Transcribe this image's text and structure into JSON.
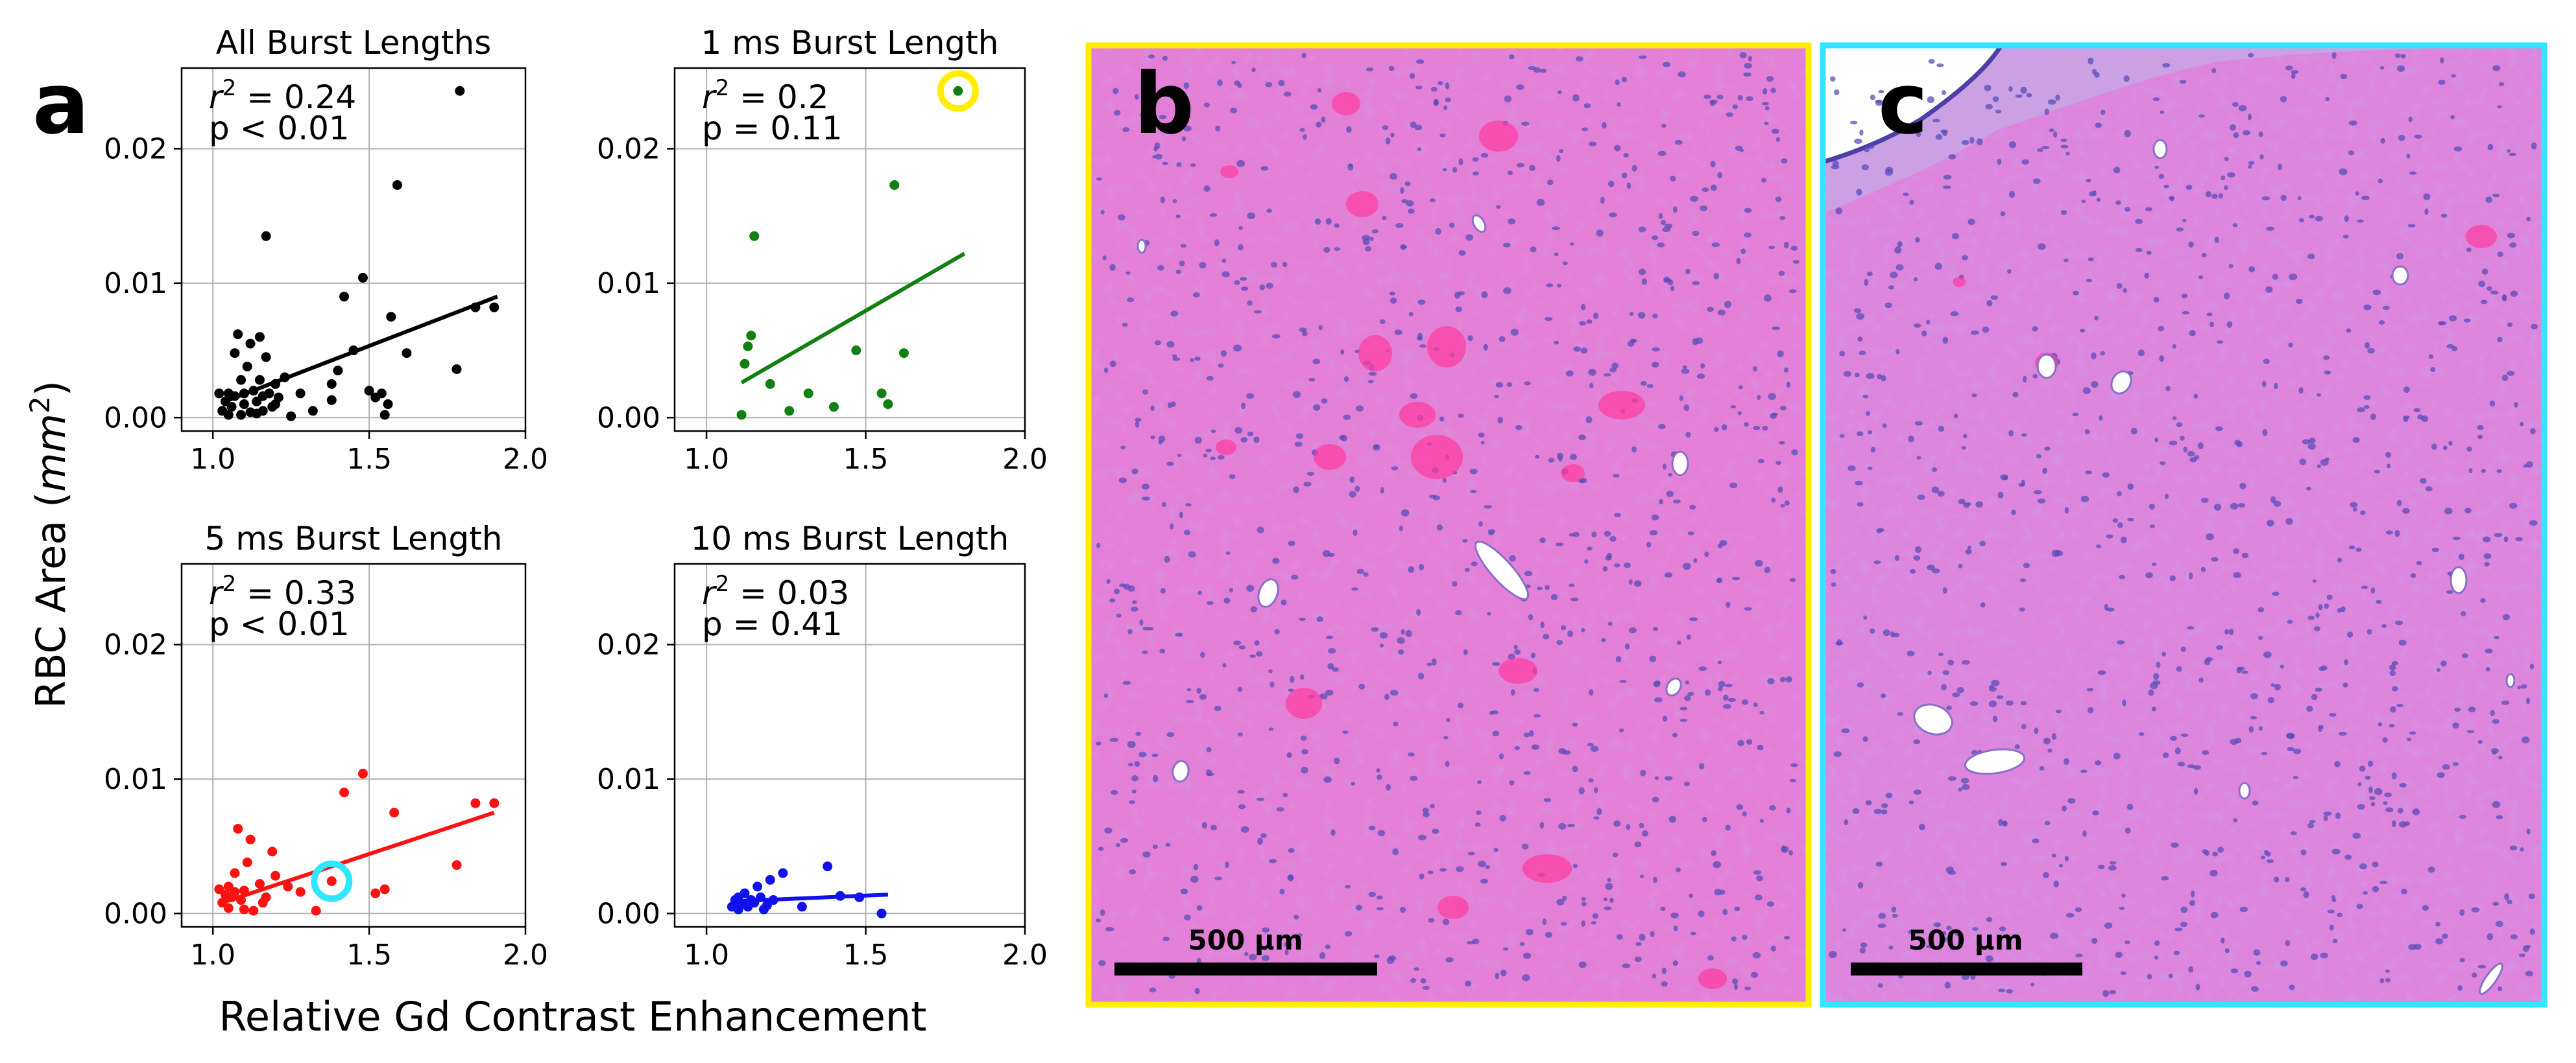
{
  "panel_labels": {
    "a": "a",
    "b": "b",
    "c": "c"
  },
  "axis_labels": {
    "ylabel_main": "RBC Area (",
    "ylabel_unit": "mm",
    "ylabel_sup": "2",
    "ylabel_close": ")",
    "xlabel": "Relative Gd Contrast Enhancement"
  },
  "stat_labels": {
    "r2_symbol": "r",
    "r2_sup": "2",
    "r2_eq": " = "
  },
  "colors": {
    "all": "#000000",
    "one_ms": "#118011",
    "five_ms": "#ff1111",
    "ten_ms": "#1111ee",
    "grid": "#b0b0b0",
    "highlight_yellow": "#ffee00",
    "highlight_cyan": "#33e6ff",
    "tissue_pink": "#e37fd6",
    "tissue_pale": "#c29be8"
  },
  "chart_data": [
    {
      "type": "scatter",
      "title": "All Burst Lengths",
      "color_key": "all",
      "xlim": [
        0.9,
        2.0
      ],
      "ylim": [
        -0.001,
        0.026
      ],
      "xticks": [
        1.0,
        1.5,
        2.0
      ],
      "xtick_labels": [
        "1.0",
        "1.5",
        "2.0"
      ],
      "yticks": [
        0.0,
        0.01,
        0.02
      ],
      "ytick_labels": [
        "0.00",
        "0.01",
        "0.02"
      ],
      "grid": true,
      "annotation": {
        "r2": "0.24",
        "p": "p < 0.01"
      },
      "fit": {
        "x": [
          1.05,
          1.91
        ],
        "y": [
          0.0013,
          0.009
        ]
      },
      "points": [
        [
          1.02,
          0.0018
        ],
        [
          1.03,
          0.0005
        ],
        [
          1.04,
          0.0012
        ],
        [
          1.05,
          0.0018
        ],
        [
          1.05,
          0.0002
        ],
        [
          1.06,
          0.0008
        ],
        [
          1.07,
          0.0016
        ],
        [
          1.07,
          0.0048
        ],
        [
          1.08,
          0.0062
        ],
        [
          1.09,
          0.0002
        ],
        [
          1.09,
          0.0028
        ],
        [
          1.1,
          0.001
        ],
        [
          1.1,
          0.0018
        ],
        [
          1.11,
          0.0038
        ],
        [
          1.12,
          0.0055
        ],
        [
          1.12,
          0.0004
        ],
        [
          1.13,
          0.002
        ],
        [
          1.14,
          0.0012
        ],
        [
          1.14,
          0.0003
        ],
        [
          1.15,
          0.006
        ],
        [
          1.15,
          0.0028
        ],
        [
          1.16,
          0.0016
        ],
        [
          1.16,
          0.0005
        ],
        [
          1.17,
          0.0045
        ],
        [
          1.17,
          0.0135
        ],
        [
          1.18,
          0.0018
        ],
        [
          1.19,
          0.0008
        ],
        [
          1.2,
          0.001
        ],
        [
          1.2,
          0.0025
        ],
        [
          1.21,
          0.0015
        ],
        [
          1.23,
          0.003
        ],
        [
          1.25,
          0.0001
        ],
        [
          1.28,
          0.0018
        ],
        [
          1.32,
          0.0005
        ],
        [
          1.38,
          0.0025
        ],
        [
          1.38,
          0.0013
        ],
        [
          1.4,
          0.0035
        ],
        [
          1.42,
          0.009
        ],
        [
          1.45,
          0.005
        ],
        [
          1.48,
          0.0104
        ],
        [
          1.5,
          0.002
        ],
        [
          1.52,
          0.0015
        ],
        [
          1.54,
          0.0018
        ],
        [
          1.55,
          0.0002
        ],
        [
          1.56,
          0.001
        ],
        [
          1.57,
          0.0075
        ],
        [
          1.59,
          0.0173
        ],
        [
          1.62,
          0.0048
        ],
        [
          1.78,
          0.0036
        ],
        [
          1.79,
          0.0243
        ],
        [
          1.84,
          0.0082
        ],
        [
          1.9,
          0.0082
        ]
      ]
    },
    {
      "type": "scatter",
      "title": "1 ms Burst Length",
      "color_key": "one_ms",
      "xlim": [
        0.9,
        2.0
      ],
      "ylim": [
        -0.001,
        0.026
      ],
      "xticks": [
        1.0,
        1.5,
        2.0
      ],
      "xtick_labels": [
        "1.0",
        "1.5",
        "2.0"
      ],
      "yticks": [
        0.0,
        0.01,
        0.02
      ],
      "ytick_labels": [
        "0.00",
        "0.01",
        "0.02"
      ],
      "grid": true,
      "annotation": {
        "r2": "0.2",
        "p": "p = 0.11"
      },
      "fit": {
        "x": [
          1.11,
          1.81
        ],
        "y": [
          0.0026,
          0.0122
        ]
      },
      "highlight": {
        "x": 1.79,
        "y": 0.0243,
        "color_key": "highlight_yellow"
      },
      "points": [
        [
          1.11,
          0.0002
        ],
        [
          1.12,
          0.004
        ],
        [
          1.13,
          0.0053
        ],
        [
          1.14,
          0.0061
        ],
        [
          1.15,
          0.0135
        ],
        [
          1.2,
          0.0025
        ],
        [
          1.26,
          0.0005
        ],
        [
          1.32,
          0.0018
        ],
        [
          1.4,
          0.0008
        ],
        [
          1.47,
          0.005
        ],
        [
          1.55,
          0.0018
        ],
        [
          1.57,
          0.001
        ],
        [
          1.59,
          0.0173
        ],
        [
          1.62,
          0.0048
        ],
        [
          1.79,
          0.0243
        ]
      ]
    },
    {
      "type": "scatter",
      "title": "5 ms Burst Length",
      "color_key": "five_ms",
      "xlim": [
        0.9,
        2.0
      ],
      "ylim": [
        -0.001,
        0.026
      ],
      "xticks": [
        1.0,
        1.5,
        2.0
      ],
      "xtick_labels": [
        "1.0",
        "1.5",
        "2.0"
      ],
      "yticks": [
        0.0,
        0.01,
        0.02
      ],
      "ytick_labels": [
        "0.00",
        "0.01",
        "0.02"
      ],
      "grid": true,
      "annotation": {
        "r2": "0.33",
        "p": "p < 0.01"
      },
      "fit": {
        "x": [
          1.03,
          1.9
        ],
        "y": [
          0.0008,
          0.0075
        ]
      },
      "highlight": {
        "x": 1.38,
        "y": 0.0024,
        "color_key": "highlight_cyan"
      },
      "points": [
        [
          1.02,
          0.0018
        ],
        [
          1.03,
          0.0008
        ],
        [
          1.04,
          0.0014
        ],
        [
          1.05,
          0.002
        ],
        [
          1.05,
          0.0004
        ],
        [
          1.06,
          0.0012
        ],
        [
          1.07,
          0.0016
        ],
        [
          1.07,
          0.003
        ],
        [
          1.08,
          0.0063
        ],
        [
          1.09,
          0.001
        ],
        [
          1.1,
          0.0017
        ],
        [
          1.1,
          0.0003
        ],
        [
          1.11,
          0.0038
        ],
        [
          1.12,
          0.0055
        ],
        [
          1.13,
          0.0002
        ],
        [
          1.15,
          0.0022
        ],
        [
          1.16,
          0.0008
        ],
        [
          1.17,
          0.0012
        ],
        [
          1.19,
          0.0046
        ],
        [
          1.2,
          0.0028
        ],
        [
          1.24,
          0.002
        ],
        [
          1.28,
          0.0016
        ],
        [
          1.33,
          0.0002
        ],
        [
          1.38,
          0.0024
        ],
        [
          1.42,
          0.009
        ],
        [
          1.48,
          0.0104
        ],
        [
          1.52,
          0.0015
        ],
        [
          1.55,
          0.0018
        ],
        [
          1.58,
          0.0075
        ],
        [
          1.78,
          0.0036
        ],
        [
          1.84,
          0.0082
        ],
        [
          1.9,
          0.0082
        ]
      ]
    },
    {
      "type": "scatter",
      "title": "10 ms Burst Length",
      "color_key": "ten_ms",
      "xlim": [
        0.9,
        2.0
      ],
      "ylim": [
        -0.001,
        0.026
      ],
      "xticks": [
        1.0,
        1.5,
        2.0
      ],
      "xtick_labels": [
        "1.0",
        "1.5",
        "2.0"
      ],
      "yticks": [
        0.0,
        0.01,
        0.02
      ],
      "ytick_labels": [
        "0.00",
        "0.01",
        "0.02"
      ],
      "grid": true,
      "annotation": {
        "r2": "0.03",
        "p": "p = 0.41"
      },
      "fit": {
        "x": [
          1.08,
          1.57
        ],
        "y": [
          0.0009,
          0.0014
        ]
      },
      "points": [
        [
          1.08,
          0.0005
        ],
        [
          1.09,
          0.001
        ],
        [
          1.1,
          0.0003
        ],
        [
          1.1,
          0.0012
        ],
        [
          1.11,
          0.0007
        ],
        [
          1.12,
          0.0015
        ],
        [
          1.13,
          0.0005
        ],
        [
          1.14,
          0.001
        ],
        [
          1.15,
          0.0008
        ],
        [
          1.16,
          0.002
        ],
        [
          1.17,
          0.0012
        ],
        [
          1.18,
          0.0003
        ],
        [
          1.19,
          0.0006
        ],
        [
          1.2,
          0.0025
        ],
        [
          1.21,
          0.001
        ],
        [
          1.24,
          0.003
        ],
        [
          1.3,
          0.0005
        ],
        [
          1.38,
          0.0035
        ],
        [
          1.42,
          0.0013
        ],
        [
          1.48,
          0.0012
        ],
        [
          1.55,
          0.0
        ]
      ]
    }
  ],
  "micrographs": {
    "b": {
      "scale_label": "500 µm",
      "frame_color_key": "highlight_yellow"
    },
    "c": {
      "scale_label": "500 µm",
      "frame_color_key": "highlight_cyan"
    }
  }
}
